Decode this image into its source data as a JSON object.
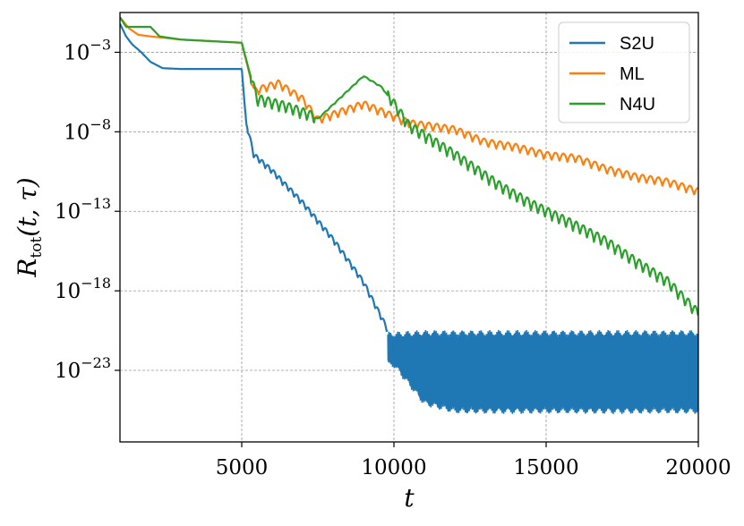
{
  "chart_data": {
    "type": "line",
    "xlabel": "t",
    "ylabel": {
      "main": "R",
      "sub": "tot",
      "args": "(t, τ)"
    },
    "xlim": [
      1000,
      20000
    ],
    "ylim_log10": [
      -27.5,
      -0.5
    ],
    "yscale": "log",
    "grid": true,
    "legend_position": "upper right",
    "x_ticks": [
      5000,
      10000,
      15000,
      20000
    ],
    "x_tick_labels": [
      "5000",
      "10000",
      "15000",
      "20000"
    ],
    "y_ticks_log10": [
      -3,
      -8,
      -13,
      -18,
      -23
    ],
    "y_tick_labels": [
      {
        "base": "10",
        "exp": "−3"
      },
      {
        "base": "10",
        "exp": "−8"
      },
      {
        "base": "10",
        "exp": "−13"
      },
      {
        "base": "10",
        "exp": "−18"
      },
      {
        "base": "10",
        "exp": "−23"
      }
    ],
    "series": [
      {
        "name": "S2U",
        "color": "#1f77b4",
        "log10_values": [
          [
            1000,
            -1.2
          ],
          [
            1200,
            -2.0
          ],
          [
            1400,
            -2.5
          ],
          [
            1700,
            -3.0
          ],
          [
            2000,
            -3.6
          ],
          [
            2400,
            -4.0
          ],
          [
            3000,
            -4.05
          ],
          [
            4000,
            -4.05
          ],
          [
            5000,
            -4.05
          ],
          [
            5150,
            -7.5
          ],
          [
            5400,
            -9.5
          ],
          [
            6000,
            -10.5
          ],
          [
            7000,
            -12.5
          ],
          [
            8000,
            -14.8
          ],
          [
            9000,
            -17.5
          ],
          [
            9800,
            -20.5
          ],
          [
            10200,
            -21.0
          ],
          [
            11000,
            -22.0
          ],
          [
            12000,
            -22.5
          ],
          [
            14000,
            -22.5
          ],
          [
            16000,
            -22.5
          ],
          [
            18000,
            -22.5
          ],
          [
            20000,
            -22.5
          ]
        ],
        "noise_band_from_x": 9800,
        "noise_band_log10": [
          [
            10000,
            -20.8,
            -22.6
          ],
          [
            11000,
            -20.7,
            -25.0
          ],
          [
            12000,
            -20.7,
            -25.5
          ],
          [
            20000,
            -20.7,
            -25.5
          ]
        ]
      },
      {
        "name": "ML",
        "color": "#ff7f0e",
        "log10_values": [
          [
            1000,
            -0.8
          ],
          [
            1300,
            -1.5
          ],
          [
            1600,
            -1.9
          ],
          [
            2000,
            -2.0
          ],
          [
            3000,
            -2.2
          ],
          [
            4000,
            -2.3
          ],
          [
            5000,
            -2.4
          ],
          [
            5400,
            -5.5
          ],
          [
            6200,
            -5.0
          ],
          [
            7000,
            -6.0
          ],
          [
            7500,
            -7.3
          ],
          [
            9000,
            -6.3
          ],
          [
            10500,
            -7.5
          ],
          [
            12000,
            -7.9
          ],
          [
            13000,
            -8.7
          ],
          [
            14000,
            -9.0
          ],
          [
            15000,
            -9.5
          ],
          [
            16000,
            -9.7
          ],
          [
            17000,
            -10.4
          ],
          [
            18000,
            -10.9
          ],
          [
            19000,
            -11.2
          ],
          [
            20000,
            -11.8
          ]
        ]
      },
      {
        "name": "N4U",
        "color": "#2ca02c",
        "log10_values": [
          [
            1000,
            -0.8
          ],
          [
            1200,
            -1.4
          ],
          [
            2000,
            -1.4
          ],
          [
            2300,
            -2.0
          ],
          [
            3000,
            -2.2
          ],
          [
            4000,
            -2.3
          ],
          [
            5000,
            -2.4
          ],
          [
            5500,
            -6.0
          ],
          [
            6500,
            -6.5
          ],
          [
            7500,
            -7.2
          ],
          [
            9000,
            -4.5
          ],
          [
            9600,
            -5.2
          ],
          [
            10500,
            -7.7
          ],
          [
            12000,
            -9.5
          ],
          [
            13500,
            -11.5
          ],
          [
            14500,
            -12.6
          ],
          [
            16000,
            -14.0
          ],
          [
            17000,
            -15.0
          ],
          [
            18000,
            -16.3
          ],
          [
            19000,
            -17.5
          ],
          [
            20000,
            -19.5
          ]
        ]
      }
    ]
  }
}
